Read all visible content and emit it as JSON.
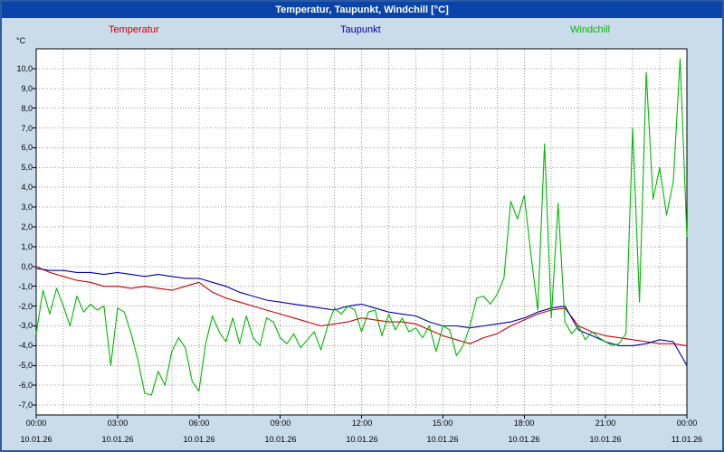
{
  "title_bar": {
    "title": "Temperatur, Taupunkt, Windchill [°C]"
  },
  "y_axis_unit": "°C",
  "colors": {
    "titlebar_bg": "#0a44a8",
    "window_bg": "#cadcea",
    "window_border": "#2c5aa0",
    "plot_bg": "#ffffff",
    "grid": "#9a9a9a",
    "temperatur": "#cc0000",
    "taupunkt": "#0000aa",
    "windchill": "#00b800"
  },
  "chart_data": {
    "type": "line",
    "title": "Temperatur, Taupunkt, Windchill [°C]",
    "grid": true,
    "legend_position": "top",
    "x_unit": "hours",
    "x_start_hour": 0,
    "x_end_hour": 24,
    "x_tick_hours": [
      0,
      3,
      6,
      9,
      12,
      15,
      18,
      21,
      24
    ],
    "x_tick_times": [
      "00:00",
      "03:00",
      "06:00",
      "09:00",
      "12:00",
      "15:00",
      "18:00",
      "21:00",
      "00:00"
    ],
    "x_tick_dates": [
      "10.01.26",
      "10.01.26",
      "10.01.26",
      "10.01.26",
      "10.01.26",
      "10.01.26",
      "10.01.26",
      "10.01.26",
      "11.01.26"
    ],
    "ylim": [
      -7.5,
      11
    ],
    "y_ticks": [
      10,
      9,
      8,
      7,
      6,
      5,
      4,
      3,
      2,
      1,
      0,
      -1,
      -2,
      -3,
      -4,
      -5,
      -6,
      -7
    ],
    "y_tick_labels": [
      "10,0",
      "9,0",
      "8,0",
      "7,0",
      "6,0",
      "5,0",
      "4,0",
      "3,0",
      "2,0",
      "1,0",
      "0,0",
      "-1,0",
      "-2,0",
      "-3,0",
      "-4,0",
      "-5,0",
      "-6,0",
      "-7,0"
    ],
    "series": [
      {
        "name": "Temperatur",
        "color": "#cc0000",
        "x0": 0,
        "x_step": 0.5,
        "values": [
          0.0,
          -0.3,
          -0.5,
          -0.7,
          -0.8,
          -1.0,
          -1.0,
          -1.1,
          -1.0,
          -1.1,
          -1.2,
          -1.0,
          -0.8,
          -1.3,
          -1.6,
          -1.8,
          -2.0,
          -2.2,
          -2.4,
          -2.6,
          -2.8,
          -3.0,
          -2.9,
          -2.8,
          -2.6,
          -2.7,
          -2.8,
          -2.8,
          -2.9,
          -3.2,
          -3.5,
          -3.7,
          -3.9,
          -3.6,
          -3.4,
          -3.0,
          -2.7,
          -2.4,
          -2.2,
          -2.1,
          -3.0,
          -3.3,
          -3.5,
          -3.6,
          -3.7,
          -3.8,
          -3.9,
          -3.9,
          -4.0
        ]
      },
      {
        "name": "Taupunkt",
        "color": "#0000aa",
        "x0": 0,
        "x_step": 0.5,
        "values": [
          -0.1,
          -0.2,
          -0.2,
          -0.3,
          -0.3,
          -0.4,
          -0.3,
          -0.4,
          -0.5,
          -0.4,
          -0.5,
          -0.6,
          -0.6,
          -0.8,
          -1.0,
          -1.3,
          -1.5,
          -1.7,
          -1.8,
          -1.9,
          -2.0,
          -2.1,
          -2.2,
          -2.0,
          -1.9,
          -2.1,
          -2.3,
          -2.4,
          -2.5,
          -2.8,
          -3.0,
          -3.0,
          -3.1,
          -3.0,
          -2.9,
          -2.8,
          -2.6,
          -2.3,
          -2.1,
          -2.0,
          -3.2,
          -3.5,
          -3.8,
          -4.0,
          -4.0,
          -3.9,
          -3.7,
          -3.8,
          -5.0
        ]
      },
      {
        "name": "Windchill",
        "color": "#00b800",
        "x0": 0,
        "x_step": 0.25,
        "values": [
          -3.4,
          -1.2,
          -2.4,
          -1.1,
          -2.0,
          -3.0,
          -1.5,
          -2.3,
          -1.9,
          -2.2,
          -2.0,
          -5.0,
          -2.1,
          -2.3,
          -3.4,
          -4.7,
          -6.4,
          -6.5,
          -5.3,
          -6.0,
          -4.3,
          -3.6,
          -4.1,
          -5.8,
          -6.3,
          -3.9,
          -2.5,
          -3.3,
          -3.8,
          -2.6,
          -3.9,
          -2.5,
          -3.6,
          -4.0,
          -2.6,
          -2.8,
          -3.6,
          -3.9,
          -3.4,
          -4.1,
          -3.7,
          -3.3,
          -4.2,
          -3.0,
          -2.1,
          -2.4,
          -2.0,
          -2.2,
          -3.3,
          -2.3,
          -2.2,
          -3.5,
          -2.4,
          -3.2,
          -2.6,
          -3.3,
          -3.1,
          -3.6,
          -3.0,
          -4.3,
          -3.0,
          -3.2,
          -4.5,
          -4.0,
          -3.0,
          -1.6,
          -1.5,
          -1.9,
          -1.4,
          -0.6,
          3.3,
          2.4,
          3.6,
          0.6,
          -2.2,
          6.2,
          -2.6,
          3.2,
          -2.8,
          -3.4,
          -3.0,
          -3.7,
          -3.3,
          -3.6,
          -3.8,
          -4.0,
          -3.9,
          -3.4,
          7.0,
          -1.8,
          9.8,
          3.4,
          5.0,
          2.6,
          4.3,
          10.5,
          1.5
        ]
      }
    ]
  }
}
